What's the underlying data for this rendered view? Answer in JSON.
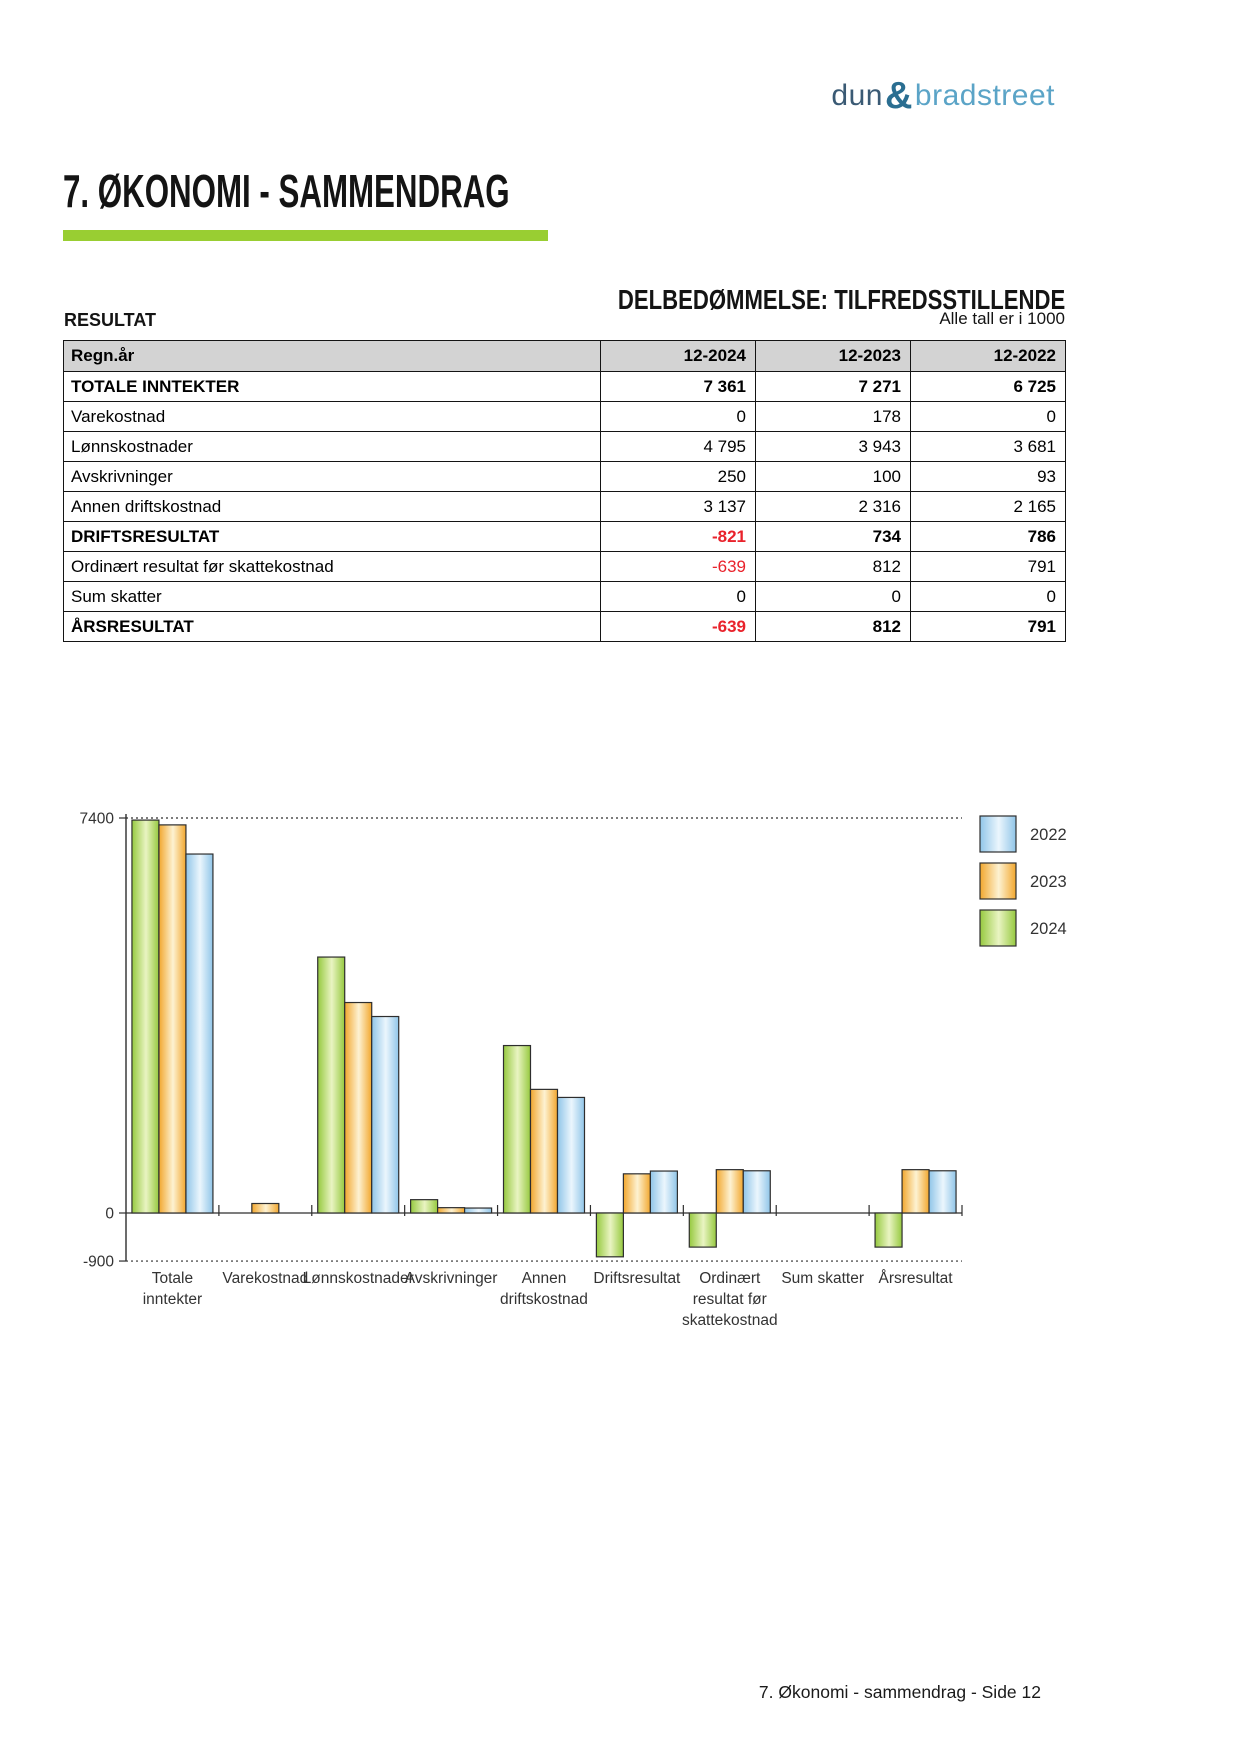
{
  "logo": {
    "text_left": "dun",
    "ampersand": "&",
    "text_right": "bradstreet"
  },
  "title": "7. ØKONOMI - SAMMENDRAG",
  "section": {
    "assessment": "DELBEDØMMELSE: TILFREDSSTILLENDE",
    "left_label": "RESULTAT",
    "units_note": "Alle tall er i 1000"
  },
  "table": {
    "headers": [
      "Regn.år",
      "12-2024",
      "12-2023",
      "12-2022"
    ],
    "rows": [
      {
        "label": "TOTALE INNTEKTER",
        "values": [
          "7 361",
          "7 271",
          "6 725"
        ],
        "bold": true,
        "neg": [
          false,
          false,
          false
        ]
      },
      {
        "label": "Varekostnad",
        "values": [
          "0",
          "178",
          "0"
        ],
        "bold": false,
        "neg": [
          false,
          false,
          false
        ]
      },
      {
        "label": "Lønnskostnader",
        "values": [
          "4 795",
          "3 943",
          "3 681"
        ],
        "bold": false,
        "neg": [
          false,
          false,
          false
        ]
      },
      {
        "label": "Avskrivninger",
        "values": [
          "250",
          "100",
          "93"
        ],
        "bold": false,
        "neg": [
          false,
          false,
          false
        ]
      },
      {
        "label": "Annen driftskostnad",
        "values": [
          "3 137",
          "2 316",
          "2 165"
        ],
        "bold": false,
        "neg": [
          false,
          false,
          false
        ]
      },
      {
        "label": "DRIFTSRESULTAT",
        "values": [
          "-821",
          "734",
          "786"
        ],
        "bold": true,
        "neg": [
          true,
          false,
          false
        ]
      },
      {
        "label": "Ordinært resultat før skattekostnad",
        "values": [
          "-639",
          "812",
          "791"
        ],
        "bold": false,
        "neg": [
          true,
          false,
          false
        ]
      },
      {
        "label": "Sum skatter",
        "values": [
          "0",
          "0",
          "0"
        ],
        "bold": false,
        "neg": [
          false,
          false,
          false
        ]
      },
      {
        "label": "ÅRSRESULTAT",
        "values": [
          "-639",
          "812",
          "791"
        ],
        "bold": true,
        "neg": [
          true,
          false,
          false
        ]
      }
    ]
  },
  "chart_data": {
    "type": "bar",
    "categories": [
      "Totale inntekter",
      "Varekostnad",
      "Lønnskostnader",
      "Avskrivninger",
      "Annen driftskostnad",
      "Driftsresultat",
      "Ordinært resultat før skattekostnad",
      "Sum skatter",
      "Årsresultat"
    ],
    "category_label_lines": [
      [
        "Totale",
        "inntekter"
      ],
      [
        "Varekostnad"
      ],
      [
        "Lønnskostnader"
      ],
      [
        "Avskrivninger"
      ],
      [
        "Annen",
        "driftskostnad"
      ],
      [
        "Driftsresultat"
      ],
      [
        "Ordinært",
        "resultat før",
        "skattekostnad"
      ],
      [
        "Sum skatter"
      ],
      [
        "Årsresultat"
      ]
    ],
    "series": [
      {
        "name": "2024",
        "color": "green",
        "values": [
          7361,
          0,
          4795,
          250,
          3137,
          -821,
          -639,
          0,
          -639
        ]
      },
      {
        "name": "2023",
        "color": "orange",
        "values": [
          7271,
          178,
          3943,
          100,
          2316,
          734,
          812,
          0,
          812
        ]
      },
      {
        "name": "2022",
        "color": "blue",
        "values": [
          6725,
          0,
          3681,
          93,
          2165,
          786,
          791,
          0,
          791
        ]
      }
    ],
    "legend": [
      {
        "label": "2022",
        "color": "blue"
      },
      {
        "label": "2023",
        "color": "orange"
      },
      {
        "label": "2024",
        "color": "green"
      }
    ],
    "legend_position": "right",
    "ylim": [
      -900,
      7400
    ],
    "yticks": [
      7400,
      0,
      -900
    ],
    "grid": "dotted-at-7400-and-minus-900",
    "title": "",
    "xlabel": "",
    "ylabel": ""
  },
  "colors": {
    "accent_green": "#99ce32",
    "negative_red": "#e9222b",
    "table_header_bg": "#d3d3d3",
    "table_border": "#141414",
    "bar_outline": "#2e2e2e",
    "bar_green_edge": "#96c93f",
    "bar_green_light": "#e9f4c2",
    "bar_orange_edge": "#f2a72e",
    "bar_orange_light": "#fdf2d2",
    "bar_blue_edge": "#90c5e8",
    "bar_blue_light": "#ebf6fd",
    "chart_text": "#333333",
    "logo_left": "#3a5a74",
    "logo_amp": "#2a6e91",
    "logo_right": "#5ba4c7"
  },
  "page": {
    "footer": "7. Økonomi - sammendrag - Side 12"
  }
}
